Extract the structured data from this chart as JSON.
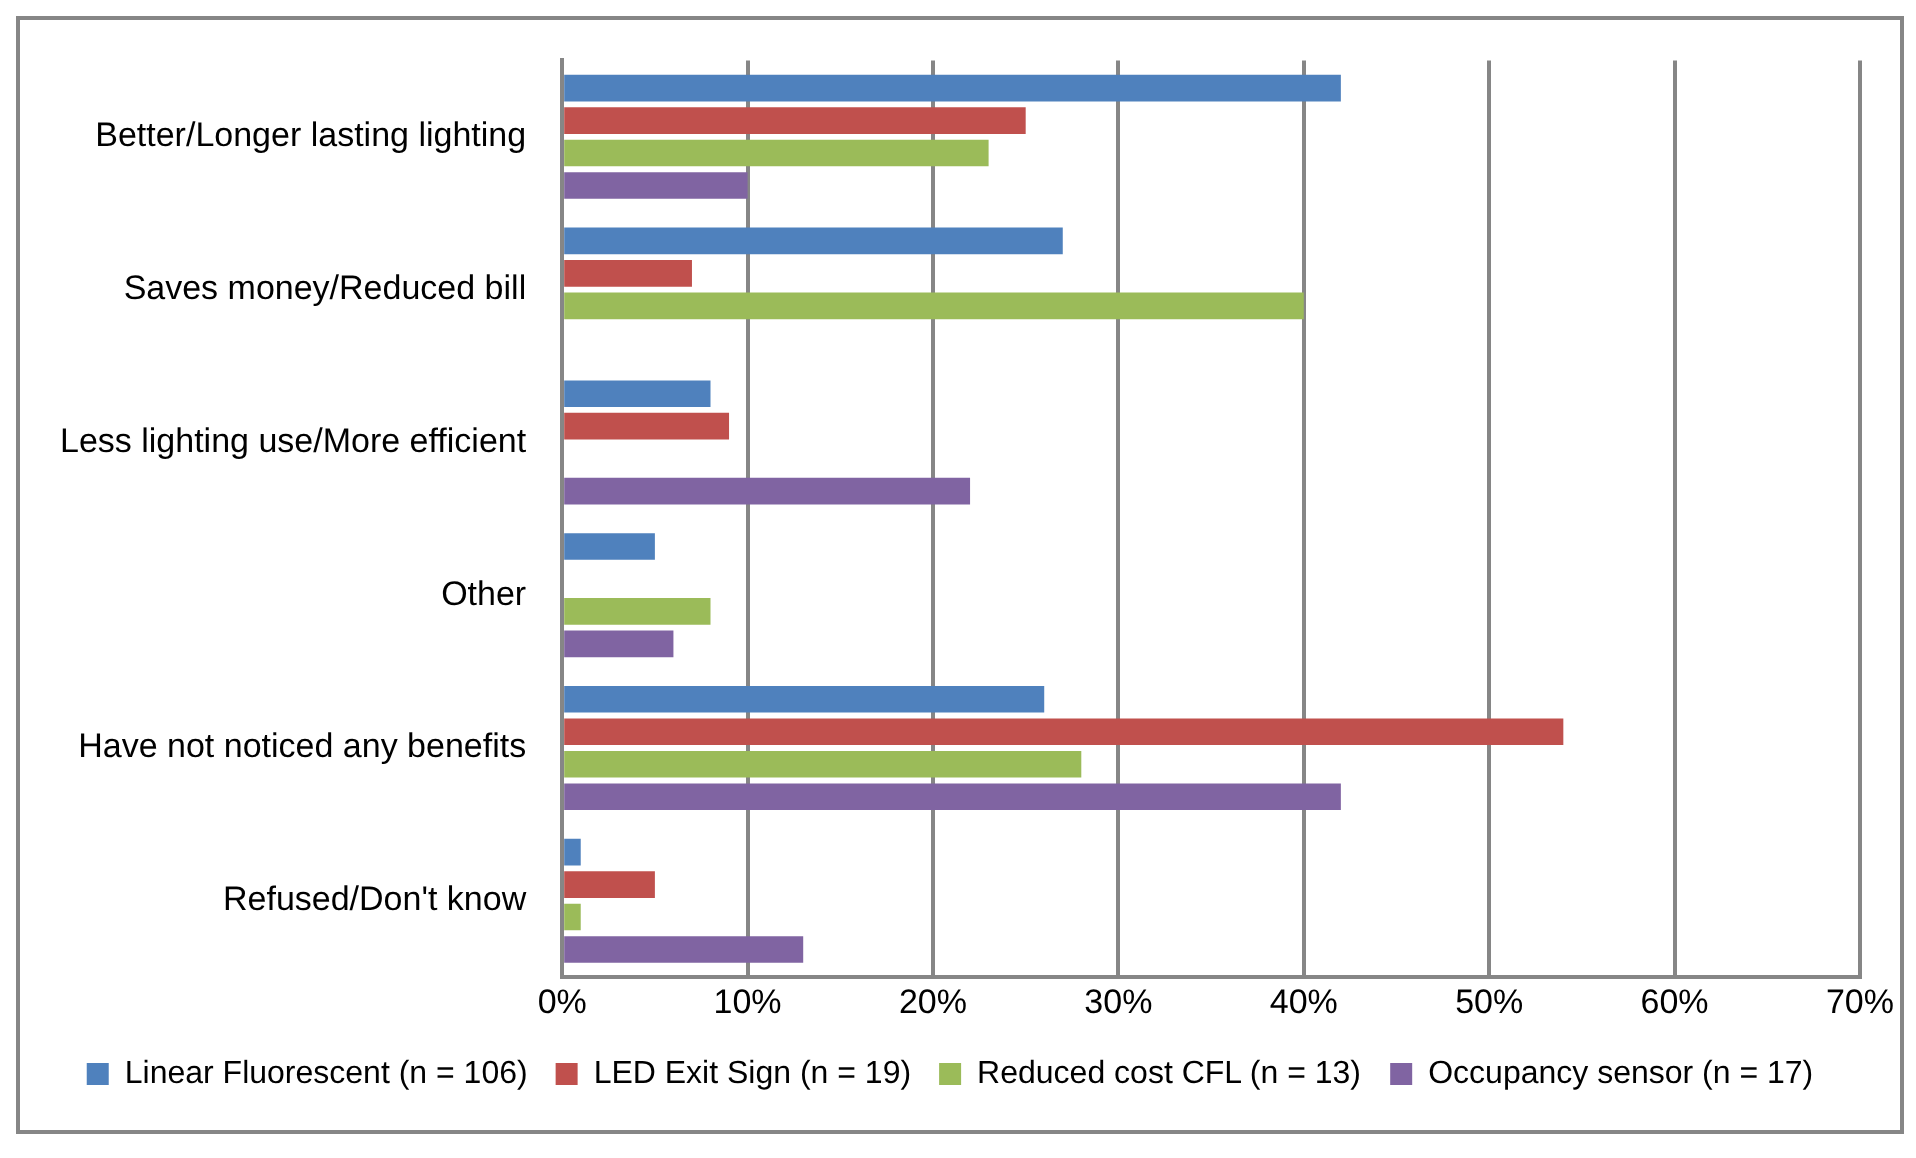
{
  "chart_data": {
    "type": "bar",
    "orientation": "horizontal",
    "categories": [
      "Better/Longer lasting lighting",
      "Saves money/Reduced bill",
      "Less lighting use/More efficient",
      "Other",
      "Have not noticed any benefits",
      "Refused/Don't know"
    ],
    "series": [
      {
        "name": "Linear Fluorescent (n = 106)",
        "color": "#4f81bd",
        "values": [
          42,
          27,
          8,
          5,
          26,
          1
        ]
      },
      {
        "name": "LED Exit Sign (n = 19)",
        "color": "#c0504d",
        "values": [
          25,
          7,
          9,
          0,
          54,
          5
        ]
      },
      {
        "name": "Reduced cost CFL (n = 13)",
        "color": "#9bbb59",
        "values": [
          23,
          40,
          0,
          8,
          28,
          1
        ]
      },
      {
        "name": "Occupancy sensor (n = 17)",
        "color": "#8064a2",
        "values": [
          10,
          0,
          22,
          6,
          42,
          13
        ]
      }
    ],
    "xlim": [
      0,
      70
    ],
    "xticks": [
      {
        "value": 0,
        "label": "0%"
      },
      {
        "value": 10,
        "label": "10%"
      },
      {
        "value": 20,
        "label": "20%"
      },
      {
        "value": 30,
        "label": "30%"
      },
      {
        "value": 40,
        "label": "40%"
      },
      {
        "value": 50,
        "label": "50%"
      },
      {
        "value": 60,
        "label": "60%"
      },
      {
        "value": 70,
        "label": "70%"
      }
    ],
    "grid": "x",
    "legend": "bottom"
  }
}
